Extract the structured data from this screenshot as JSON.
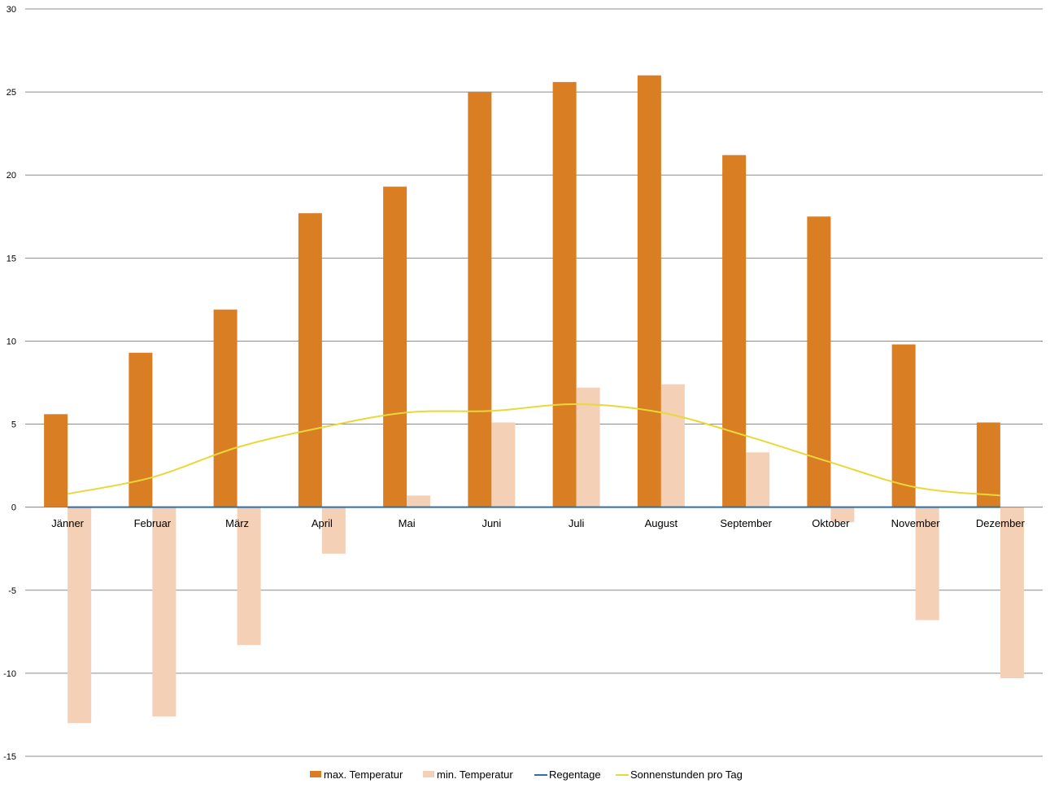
{
  "chart_data": {
    "type": "bar",
    "title": "",
    "xlabel": "",
    "ylabel": "",
    "ylim": [
      -15,
      30
    ],
    "yticks": [
      -15,
      -10,
      -5,
      0,
      5,
      10,
      15,
      20,
      25,
      30
    ],
    "grid": true,
    "legend_position": "bottom",
    "categories": [
      "Jänner",
      "Februar",
      "März",
      "April",
      "Mai",
      "Juni",
      "Juli",
      "August",
      "September",
      "Oktober",
      "November",
      "Dezember"
    ],
    "series": [
      {
        "name": "max. Temperatur",
        "kind": "bar",
        "color": "#D97E22",
        "values": [
          5.6,
          9.3,
          11.9,
          17.7,
          19.3,
          25.0,
          25.6,
          26.0,
          21.2,
          17.5,
          9.8,
          5.1
        ]
      },
      {
        "name": "min. Temperatur",
        "kind": "bar",
        "color": "#F4D0B6",
        "values": [
          -13.0,
          -12.6,
          -8.3,
          -2.8,
          0.7,
          5.1,
          7.2,
          7.4,
          3.3,
          -0.9,
          -6.8,
          -10.3
        ]
      },
      {
        "name": "Regentage",
        "kind": "line",
        "color": "#2E6FA6",
        "values": [
          0,
          0,
          0,
          0,
          0,
          0,
          0,
          0,
          0,
          0,
          0,
          0
        ]
      },
      {
        "name": "Sonnenstunden pro Tag",
        "kind": "line",
        "color": "#E8D83A",
        "values": [
          0.8,
          1.8,
          3.6,
          4.8,
          5.7,
          5.8,
          6.2,
          5.7,
          4.3,
          2.7,
          1.2,
          0.7
        ]
      }
    ]
  }
}
